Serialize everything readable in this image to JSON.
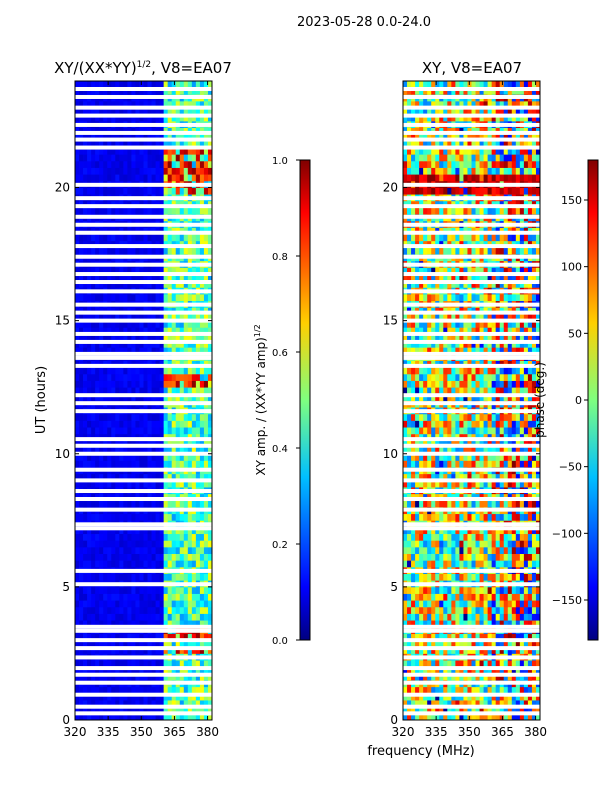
{
  "figure": {
    "suptitle": "2023-05-28 0.0-24.0",
    "xlabel": "frequency (MHz)"
  },
  "chart_data": [
    {
      "type": "heatmap",
      "title_main": "XY/(XX*YY)",
      "title_sup": "1/2",
      "title_tail": ", V8=EA07",
      "ylabel": "UT (hours)",
      "xlim": [
        320,
        382
      ],
      "ylim": [
        0,
        24
      ],
      "x_ticks": [
        320,
        335,
        350,
        365,
        380
      ],
      "y_ticks": [
        0,
        5,
        10,
        15,
        20
      ],
      "colorbar": {
        "label_main": "XY amp. / (XX*YY amp)",
        "label_sup": "1/2",
        "range": [
          0.0,
          1.0
        ],
        "ticks": [
          0.0,
          0.2,
          0.4,
          0.6,
          0.8,
          1.0
        ],
        "tick_labels": [
          "0.0",
          "0.2",
          "0.4",
          "0.6",
          "0.8",
          "1.0"
        ],
        "colormap": "jet"
      },
      "flagged_ut_hours": [
        0.25,
        0.5,
        0.95,
        1.4,
        1.7,
        1.95,
        2.35,
        2.7,
        3.0,
        3.35,
        3.5,
        5.1,
        5.6,
        7.2,
        7.35,
        7.9,
        8.3,
        8.6,
        9.0,
        9.4,
        10.0,
        10.3,
        10.55,
        11.6,
        11.9,
        12.2,
        13.3,
        13.6,
        13.75,
        14.2,
        14.5,
        15.0,
        15.3,
        15.6,
        16.1,
        16.45,
        16.75,
        17.1,
        17.4,
        17.8,
        18.3,
        18.6,
        18.9,
        19.3,
        19.6,
        20.1,
        21.5,
        21.8,
        22.05,
        22.35,
        22.7,
        23.0,
        23.4,
        23.7
      ],
      "amplitude_background": 0.08,
      "bright_band_mhz": [
        360,
        382
      ],
      "bright_band_amplitude": 0.45,
      "hot_stripe_ut_hours": [
        2.6,
        3.2,
        12.8,
        20.3,
        20.6,
        20.9,
        21.2,
        20.0
      ]
    },
    {
      "type": "heatmap",
      "title": "XY, V8=EA07",
      "xlim": [
        320,
        382
      ],
      "ylim": [
        0,
        24
      ],
      "x_ticks": [
        320,
        335,
        350,
        365,
        380
      ],
      "y_ticks": [
        0,
        5,
        10,
        15,
        20
      ],
      "colorbar": {
        "label": "phase (deg.)",
        "range": [
          -180,
          180
        ],
        "ticks": [
          -150,
          -100,
          -50,
          0,
          50,
          100,
          150
        ],
        "tick_labels": [
          "−150",
          "−100",
          "−50",
          "0",
          "50",
          "100",
          "150"
        ],
        "colormap": "jet"
      },
      "flagged_ut_hours": [
        0.25,
        0.5,
        0.95,
        1.4,
        1.7,
        1.95,
        2.35,
        2.7,
        3.0,
        3.35,
        3.5,
        5.1,
        5.6,
        7.2,
        7.35,
        7.9,
        8.3,
        8.6,
        9.0,
        9.4,
        10.0,
        10.3,
        10.55,
        11.6,
        11.9,
        12.2,
        13.3,
        13.6,
        13.75,
        14.2,
        14.5,
        15.0,
        15.3,
        15.6,
        16.1,
        16.45,
        16.75,
        17.1,
        17.4,
        17.8,
        18.3,
        18.6,
        18.9,
        19.3,
        19.6,
        20.1,
        21.5,
        21.8,
        22.05,
        22.35,
        22.7,
        23.0,
        23.4,
        23.7
      ],
      "dominant_phase_deg": 20,
      "phase_spread_deg": 160
    }
  ]
}
